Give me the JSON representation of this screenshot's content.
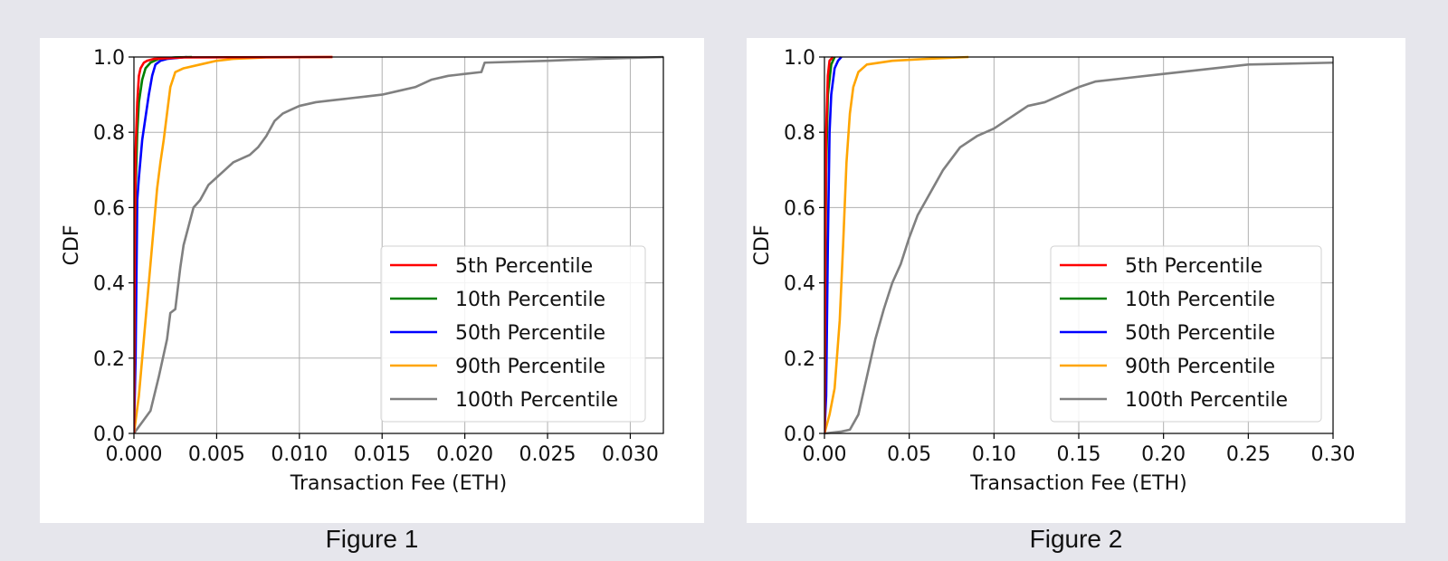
{
  "figures": [
    {
      "caption": "Figure 1"
    },
    {
      "caption": "Figure 2"
    }
  ],
  "chart_data": [
    {
      "type": "line",
      "title": "",
      "xlabel": "Transaction Fee (ETH)",
      "ylabel": "CDF",
      "xlim": [
        0,
        0.032
      ],
      "ylim": [
        0,
        1.0
      ],
      "xticks": [
        "0.000",
        "0.005",
        "0.010",
        "0.015",
        "0.020",
        "0.025",
        "0.030"
      ],
      "xtick_values": [
        0,
        0.005,
        0.01,
        0.015,
        0.02,
        0.025,
        0.03
      ],
      "yticks": [
        "0.0",
        "0.2",
        "0.4",
        "0.6",
        "0.8",
        "1.0"
      ],
      "ytick_values": [
        0,
        0.2,
        0.4,
        0.6,
        0.8,
        1.0
      ],
      "grid": true,
      "legend_position": "lower-right",
      "series": [
        {
          "name": "5th Percentile",
          "color": "#ff0000",
          "x": [
            0,
            5e-05,
            0.0001,
            0.0002,
            0.0003,
            0.0004,
            0.0006,
            0.0008,
            0.0012,
            0.003,
            0.012
          ],
          "y": [
            0,
            0.5,
            0.75,
            0.88,
            0.95,
            0.97,
            0.985,
            0.99,
            0.995,
            0.999,
            1.0
          ]
        },
        {
          "name": "10th Percentile",
          "color": "#008000",
          "x": [
            0,
            5e-05,
            0.0001,
            0.0002,
            0.0003,
            0.0005,
            0.0007,
            0.001,
            0.0015,
            0.0025,
            0.0035
          ],
          "y": [
            0,
            0.45,
            0.65,
            0.8,
            0.88,
            0.94,
            0.97,
            0.985,
            0.995,
            0.999,
            1.0
          ]
        },
        {
          "name": "50th Percentile",
          "color": "#0000ff",
          "x": [
            0,
            0.0001,
            0.0002,
            0.0003,
            0.0005,
            0.0007,
            0.0009,
            0.0011,
            0.0013,
            0.0016,
            0.002,
            0.0032
          ],
          "y": [
            0,
            0.2,
            0.62,
            0.68,
            0.78,
            0.84,
            0.9,
            0.95,
            0.98,
            0.99,
            0.995,
            1.0
          ]
        },
        {
          "name": "90th Percentile",
          "color": "#ffa500",
          "x": [
            0,
            0.0003,
            0.0006,
            0.0009,
            0.0012,
            0.0014,
            0.0016,
            0.0018,
            0.002,
            0.0022,
            0.0025,
            0.003,
            0.004,
            0.005,
            0.006,
            0.008,
            0.012
          ],
          "y": [
            0,
            0.1,
            0.25,
            0.4,
            0.55,
            0.65,
            0.72,
            0.78,
            0.85,
            0.92,
            0.96,
            0.97,
            0.98,
            0.99,
            0.995,
            0.999,
            1.0
          ]
        },
        {
          "name": "100th Percentile",
          "color": "#808080",
          "x": [
            0,
            0.0005,
            0.001,
            0.0015,
            0.002,
            0.0022,
            0.0025,
            0.0028,
            0.003,
            0.0033,
            0.0036,
            0.004,
            0.0045,
            0.005,
            0.0055,
            0.006,
            0.007,
            0.0075,
            0.008,
            0.0085,
            0.009,
            0.0095,
            0.01,
            0.011,
            0.012,
            0.013,
            0.014,
            0.015,
            0.016,
            0.017,
            0.018,
            0.019,
            0.02,
            0.021,
            0.0212,
            0.025,
            0.028,
            0.032
          ],
          "y": [
            0,
            0.03,
            0.06,
            0.15,
            0.25,
            0.32,
            0.33,
            0.44,
            0.5,
            0.55,
            0.6,
            0.62,
            0.66,
            0.68,
            0.7,
            0.72,
            0.74,
            0.76,
            0.79,
            0.83,
            0.85,
            0.86,
            0.87,
            0.88,
            0.885,
            0.89,
            0.895,
            0.9,
            0.91,
            0.92,
            0.94,
            0.95,
            0.955,
            0.96,
            0.985,
            0.99,
            0.995,
            1.0
          ]
        }
      ]
    },
    {
      "type": "line",
      "title": "",
      "xlabel": "Transaction Fee (ETH)",
      "ylabel": "CDF",
      "xlim": [
        0,
        0.3
      ],
      "ylim": [
        0,
        1.0
      ],
      "xticks": [
        "0.00",
        "0.05",
        "0.10",
        "0.15",
        "0.20",
        "0.25",
        "0.30"
      ],
      "xtick_values": [
        0,
        0.05,
        0.1,
        0.15,
        0.2,
        0.25,
        0.3
      ],
      "yticks": [
        "0.0",
        "0.2",
        "0.4",
        "0.6",
        "0.8",
        "1.0"
      ],
      "ytick_values": [
        0,
        0.2,
        0.4,
        0.6,
        0.8,
        1.0
      ],
      "grid": true,
      "legend_position": "lower-right",
      "series": [
        {
          "name": "5th Percentile",
          "color": "#ff0000",
          "x": [
            0,
            0.0005,
            0.001,
            0.002,
            0.003,
            0.005
          ],
          "y": [
            0,
            0.5,
            0.8,
            0.95,
            0.99,
            1.0
          ]
        },
        {
          "name": "10th Percentile",
          "color": "#008000",
          "x": [
            0,
            0.0005,
            0.001,
            0.002,
            0.004,
            0.006
          ],
          "y": [
            0,
            0.4,
            0.7,
            0.9,
            0.98,
            1.0
          ]
        },
        {
          "name": "50th Percentile",
          "color": "#0000ff",
          "x": [
            0,
            0.001,
            0.002,
            0.003,
            0.004,
            0.006,
            0.008,
            0.01
          ],
          "y": [
            0,
            0.1,
            0.5,
            0.8,
            0.9,
            0.97,
            0.99,
            1.0
          ]
        },
        {
          "name": "90th Percentile",
          "color": "#ffa500",
          "x": [
            0,
            0.003,
            0.006,
            0.009,
            0.011,
            0.013,
            0.015,
            0.017,
            0.02,
            0.025,
            0.04,
            0.06,
            0.085
          ],
          "y": [
            0,
            0.05,
            0.12,
            0.3,
            0.5,
            0.72,
            0.85,
            0.92,
            0.96,
            0.98,
            0.99,
            0.995,
            1.0
          ]
        },
        {
          "name": "100th Percentile",
          "color": "#808080",
          "x": [
            0,
            0.01,
            0.015,
            0.02,
            0.025,
            0.03,
            0.035,
            0.04,
            0.045,
            0.05,
            0.055,
            0.06,
            0.065,
            0.07,
            0.075,
            0.08,
            0.09,
            0.1,
            0.11,
            0.12,
            0.13,
            0.14,
            0.15,
            0.16,
            0.18,
            0.2,
            0.22,
            0.25,
            0.3
          ],
          "y": [
            0,
            0.005,
            0.01,
            0.05,
            0.15,
            0.25,
            0.33,
            0.4,
            0.45,
            0.52,
            0.58,
            0.62,
            0.66,
            0.7,
            0.73,
            0.76,
            0.79,
            0.81,
            0.84,
            0.87,
            0.88,
            0.9,
            0.92,
            0.935,
            0.945,
            0.955,
            0.965,
            0.98,
            0.985
          ]
        }
      ]
    }
  ]
}
